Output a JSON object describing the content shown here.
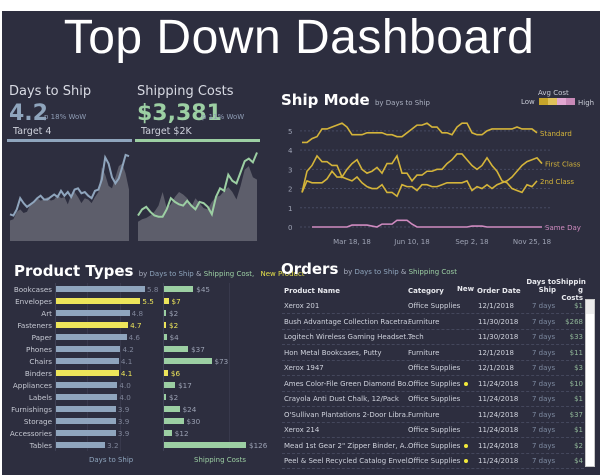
{
  "dashboard": {
    "title": "Top Down Dashboard"
  },
  "kpis": [
    {
      "label": "Days to Ship",
      "value": "4.2",
      "change": "p 18% WoW",
      "target": "Target 4",
      "color": "#8fa5bd",
      "trend_current": [
        2.0,
        1.9,
        2.4,
        3.3,
        2.9,
        2.6,
        2.8,
        3.0,
        3.3,
        3.5,
        3.2,
        3.2,
        3.4,
        3.6,
        3.4,
        3.9,
        3.5,
        3.8,
        3.4,
        4.0,
        4.1,
        3.7,
        3.8,
        3.5,
        3.3,
        3.9,
        4.0,
        4.8,
        6.6,
        6.1,
        5.0,
        4.5,
        4.9,
        5.8,
        6.8,
        6.7
      ],
      "trend_previous": [
        1.5,
        1.6,
        2.2,
        2.4,
        2.1,
        2.2,
        2.8,
        3.1,
        3.3,
        3.1,
        3.2,
        3.4,
        3.1,
        3.2,
        3.6,
        3.3,
        3.4,
        2.8,
        3.6,
        3.8,
        3.4,
        2.9,
        3.3,
        3.2,
        2.9,
        3.4,
        3.8,
        5.8,
        5.2,
        4.3,
        4.1,
        5.0,
        5.9,
        6.1,
        5.3,
        4.0
      ]
    },
    {
      "label": "Shipping Costs",
      "value": "$3,381",
      "change": "p 11% WoW",
      "target": "Target $2K",
      "color": "#9ccfa3",
      "trend_current": [
        1.9,
        2.4,
        2.6,
        2.2,
        1.9,
        1.8,
        1.8,
        2.4,
        3.3,
        3.0,
        2.8,
        2.7,
        3.1,
        2.7,
        2.4,
        3.0,
        2.9,
        2.6,
        2.0,
        3.4,
        4.1,
        3.9,
        5.2,
        4.7,
        4.5,
        5.4,
        6.3,
        6.5,
        6.2,
        7.0
      ],
      "trend_previous": [
        1.4,
        1.6,
        1.7,
        1.9,
        2.2,
        2.7,
        3.8,
        2.5,
        2.8,
        3.4,
        3.8,
        3.6,
        3.3,
        2.6,
        3.3,
        2.9,
        2.5,
        2.4,
        3.0,
        3.4,
        3.5,
        3.9,
        4.2,
        3.8,
        3.2,
        4.3,
        5.6,
        5.9,
        5.0,
        4.8
      ]
    }
  ],
  "ship_mode": {
    "title": "Ship Mode",
    "subtitle": "by Days to Ship",
    "legend": {
      "title": "Avg Cost",
      "low": "Low",
      "high": "High",
      "colors": [
        "#c6a42a",
        "#dfc15a",
        "#e2a7d1",
        "#c98ab8"
      ]
    },
    "chart_data": {
      "type": "line",
      "title": "Ship Mode",
      "xlabel": "",
      "ylabel": "Days to Ship",
      "ylim": [
        0,
        5.5
      ],
      "yticks": [
        0,
        1,
        2,
        3,
        4,
        5
      ],
      "xticks": [
        "Mar 18, 18",
        "Jun 10, 18",
        "Sep 2, 18",
        "Nov 25, 18"
      ],
      "xtick_positions": [
        10,
        22,
        34,
        46
      ],
      "grid": true,
      "series": [
        {
          "name": "Standard",
          "color": "#d4b43a",
          "values": [
            4.4,
            4.4,
            4.6,
            4.7,
            5.1,
            5.1,
            5.2,
            5.3,
            5.4,
            5.2,
            4.8,
            4.8,
            4.8,
            4.9,
            4.9,
            4.9,
            4.9,
            4.8,
            4.8,
            4.7,
            4.7,
            4.9,
            5.1,
            5.3,
            5.3,
            5.4,
            5.2,
            5.2,
            4.9,
            4.9,
            4.8,
            5.2,
            5.4,
            5.4,
            4.9,
            4.8,
            4.8,
            5.0,
            5.1,
            5.1,
            5.1,
            5.1,
            5.1,
            5.2,
            5.1,
            5.1,
            5.1,
            4.9
          ]
        },
        {
          "name": "2nd Class",
          "color": "#d4b43a",
          "values": [
            1.8,
            2.9,
            3.2,
            3.7,
            3.4,
            3.4,
            3.2,
            3.2,
            2.6,
            3.0,
            3.3,
            3.5,
            3.0,
            2.8,
            2.9,
            3.1,
            2.8,
            3.3,
            3.3,
            3.7,
            2.8,
            2.8,
            2.4,
            2.7,
            2.7,
            2.9,
            2.9,
            3.0,
            3.0,
            3.3,
            3.5,
            3.8,
            3.8,
            3.5,
            3.2,
            3.0,
            3.2,
            3.6,
            3.2,
            2.9,
            2.4,
            2.3,
            2.0,
            1.9,
            1.8,
            2.2,
            2.1,
            2.4
          ]
        },
        {
          "name": "First Class",
          "color": "#d4b43a",
          "values": [
            1.8,
            2.4,
            2.3,
            2.3,
            2.3,
            2.5,
            2.9,
            2.6,
            2.6,
            2.5,
            2.4,
            2.6,
            2.3,
            2.1,
            2.0,
            2.0,
            2.2,
            1.8,
            1.8,
            1.6,
            2.2,
            2.1,
            2.1,
            1.9,
            2.2,
            2.2,
            2.1,
            2.1,
            2.2,
            2.3,
            2.3,
            2.3,
            2.3,
            2.4,
            1.9,
            2.1,
            2.0,
            2.2,
            2.0,
            2.2,
            2.3,
            2.4,
            2.6,
            2.9,
            3.2,
            3.4,
            3.5,
            3.6,
            3.3
          ]
        },
        {
          "name": "Same Day",
          "color": "#d08bc0",
          "values": [
            null,
            null,
            0.0,
            0.0,
            0.0,
            0.0,
            0.0,
            0.0,
            0.0,
            0.0,
            0.1,
            0.1,
            0.1,
            0.1,
            0.05,
            0.0,
            0.15,
            0.15,
            0.15,
            0.35,
            0.35,
            0.35,
            0.15,
            0.0,
            0.0,
            0.0,
            0.0,
            0.0,
            0.0,
            0.0,
            0.0,
            0.0,
            0.0,
            0.0,
            0.05,
            0.05,
            0.05,
            0.0,
            0.0,
            0.0,
            0.0,
            0.0,
            0.0,
            0.0,
            0.0,
            0.0,
            0.0,
            0.0,
            0.0
          ]
        }
      ]
    }
  },
  "product_types": {
    "title": "Product Types",
    "subtitle_by": "by",
    "subtitle_m1": "Days to Ship",
    "subtitle_amp": "&",
    "subtitle_m2": "Shipping Cost,",
    "subtitle_new": "New Product",
    "axis1_title": "Days to Ship",
    "axis2_title": "Shipping Costs",
    "chart_data": {
      "type": "bar",
      "categories": [
        "Bookcases",
        "Envelopes",
        "Art",
        "Fasteners",
        "Paper",
        "Phones",
        "Chairs",
        "Binders",
        "Appliances",
        "Labels",
        "Furnishings",
        "Storage",
        "Accessories",
        "Tables"
      ],
      "series": [
        {
          "name": "Days to Ship",
          "values": [
            5.8,
            5.5,
            4.8,
            4.7,
            4.6,
            4.2,
            4.1,
            4.1,
            4.0,
            4.0,
            3.9,
            3.9,
            3.9,
            3.2
          ],
          "labels": [
            "5.8",
            "5.5",
            "4.8",
            "4.7",
            "4.6",
            "4.2",
            "4.1",
            "4.1",
            "4.0",
            "4.0",
            "3.9",
            "3.9",
            "3.9",
            "3.2"
          ]
        },
        {
          "name": "Shipping Costs",
          "values": [
            45,
            7,
            2,
            2,
            4,
            37,
            73,
            6,
            17,
            2,
            24,
            30,
            12,
            126
          ],
          "labels": [
            "$45",
            "$7",
            "$2",
            "$2",
            "$4",
            "$37",
            "$73",
            "$6",
            "$17",
            "$2",
            "$24",
            "$30",
            "$12",
            "$126"
          ]
        }
      ],
      "new_product": [
        false,
        true,
        false,
        true,
        false,
        false,
        false,
        true,
        false,
        false,
        false,
        false,
        false,
        false
      ],
      "colors": {
        "days": "#8fa5bd",
        "cost": "#9ccfa3",
        "new": "#ede55a"
      }
    }
  },
  "orders": {
    "title": "Orders",
    "subtitle_by": "by",
    "subtitle_m1": "Days to Ship",
    "subtitle_amp": "&",
    "subtitle_m2": "Shipping Cost",
    "columns": {
      "product": "Product Name",
      "category": "Category",
      "new": "New",
      "date": "Order Date",
      "days_l1": "Days to",
      "days_l2": "Ship",
      "cost_l1": "Shippin",
      "cost_l2": "g Costs"
    },
    "rows": [
      {
        "product": "Xerox 201",
        "category": "Office Supplies",
        "new": false,
        "date": "12/1/2018",
        "days": "7 days",
        "cost": "$1"
      },
      {
        "product": "Bush Advantage Collection Racetra..",
        "category": "Furniture",
        "new": false,
        "date": "11/30/2018",
        "days": "7 days",
        "cost": "$268"
      },
      {
        "product": "Logitech Wireless Gaming Headset..",
        "category": "Tech",
        "new": false,
        "date": "11/30/2018",
        "days": "7 days",
        "cost": "$33"
      },
      {
        "product": "Hon Metal Bookcases, Putty",
        "category": "Furniture",
        "new": false,
        "date": "12/1/2018",
        "days": "7 days",
        "cost": "$11"
      },
      {
        "product": "Xerox 1947",
        "category": "Office Supplies",
        "new": false,
        "date": "12/1/2018",
        "days": "7 days",
        "cost": "$3"
      },
      {
        "product": "Ames Color-File Green Diamond Bo..",
        "category": "Office Supplies",
        "new": true,
        "date": "11/24/2018",
        "days": "7 days",
        "cost": "$10"
      },
      {
        "product": "Crayola Anti Dust Chalk, 12/Pack",
        "category": "Office Supplies",
        "new": false,
        "date": "11/24/2018",
        "days": "7 days",
        "cost": "$1"
      },
      {
        "product": "O'Sullivan Plantations 2-Door Libra..",
        "category": "Furniture",
        "new": false,
        "date": "11/24/2018",
        "days": "7 days",
        "cost": "$37"
      },
      {
        "product": "Xerox 214",
        "category": "Office Supplies",
        "new": false,
        "date": "11/24/2018",
        "days": "7 days",
        "cost": "$1"
      },
      {
        "product": "Mead 1st Gear 2\" Zipper Binder, A..",
        "category": "Office Supplies",
        "new": true,
        "date": "11/24/2018",
        "days": "7 days",
        "cost": "$2"
      },
      {
        "product": "Peel & Seel Recycled Catalog Envel..",
        "category": "Office Supplies",
        "new": true,
        "date": "11/24/2018",
        "days": "7 days",
        "cost": "$4"
      }
    ]
  }
}
